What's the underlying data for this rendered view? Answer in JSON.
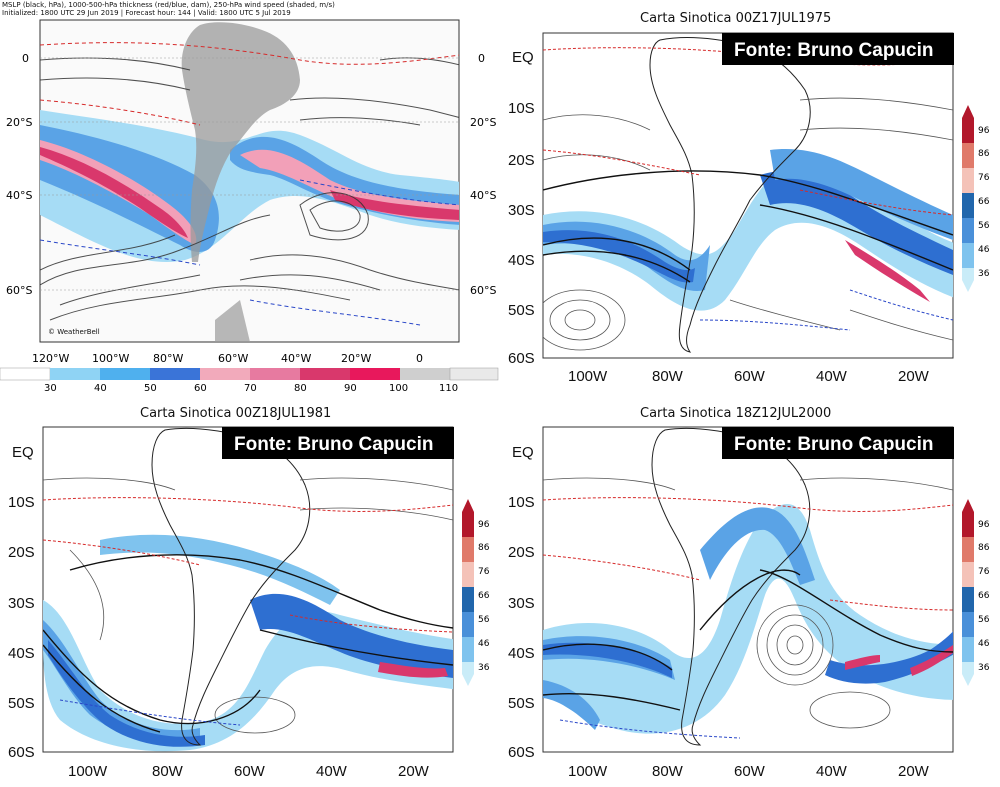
{
  "panel_a": {
    "header_line1": "MSLP (black, hPa), 1000-500-hPa thickness (red/blue, dam), 250-hPa wind speed (shaded, m/s)",
    "header_line2": "Initialized: 1800 UTC 29 Jun 2019 | Forecast hour: 144 | Valid: 1800 UTC 5 Jul 2019",
    "left_lat_labels": [
      "0",
      "20°S",
      "40°S",
      "60°S"
    ],
    "right_lat_labels": [
      "0",
      "20°S",
      "40°S",
      "60°S"
    ],
    "lon_labels": [
      "120°W",
      "100°W",
      "80°W",
      "60°W",
      "40°W",
      "20°W",
      "0"
    ],
    "colorbar_values": [
      "30",
      "40",
      "50",
      "60",
      "70",
      "80",
      "90",
      "100",
      "110"
    ],
    "colorbar_colors": [
      "#ffffff",
      "#8fd3f4",
      "#4fb0ee",
      "#3a74d8",
      "#f2aabb",
      "#e77aa0",
      "#d9386c",
      "#e8185c",
      "#cfcfcf",
      "#e9e9e9"
    ],
    "watermark": "© WeatherBell"
  },
  "panel_b": {
    "title": "Carta Sinotica 00Z17JUL1975",
    "credit": "Fonte: Bruno Capucin",
    "lat_labels": [
      "EQ",
      "10S",
      "20S",
      "30S",
      "40S",
      "50S",
      "60S"
    ],
    "lon_labels": [
      "100W",
      "80W",
      "60W",
      "40W",
      "20W"
    ],
    "scale_values": [
      "96",
      "86",
      "76",
      "66",
      "56",
      "46",
      "36"
    ]
  },
  "panel_c": {
    "title": "Carta Sinotica 00Z18JUL1981",
    "credit": "Fonte: Bruno Capucin",
    "lat_labels": [
      "EQ",
      "10S",
      "20S",
      "30S",
      "40S",
      "50S",
      "60S"
    ],
    "lon_labels": [
      "100W",
      "80W",
      "60W",
      "40W",
      "20W"
    ],
    "scale_values": [
      "96",
      "86",
      "76",
      "66",
      "56",
      "46",
      "36"
    ]
  },
  "panel_d": {
    "title": "Carta Sinotica 18Z12JUL2000",
    "credit": "Fonte: Bruno Capucin",
    "lat_labels": [
      "EQ",
      "10S",
      "20S",
      "30S",
      "40S",
      "50S",
      "60S"
    ],
    "lon_labels": [
      "100W",
      "80W",
      "60W",
      "40W",
      "20W"
    ],
    "scale_values": [
      "96",
      "86",
      "76",
      "66",
      "56",
      "46",
      "36"
    ]
  },
  "scale_colors": [
    "#b2182b",
    "#e07a6a",
    "#f4c2b8",
    "#2166ac",
    "#4a90d9",
    "#7fc3ee",
    "#c9ecf8"
  ],
  "map_colors": {
    "jet_dark": "#2e6fd1",
    "jet_mid": "#5aa3e6",
    "jet_light": "#a6dcf5",
    "pink": "#f2a0b8",
    "red": "#d9386c",
    "land_gray": "#9a9a9a",
    "isobar": "#333333",
    "thick_red": "#d62a2a",
    "thick_blue": "#2a47c8"
  }
}
